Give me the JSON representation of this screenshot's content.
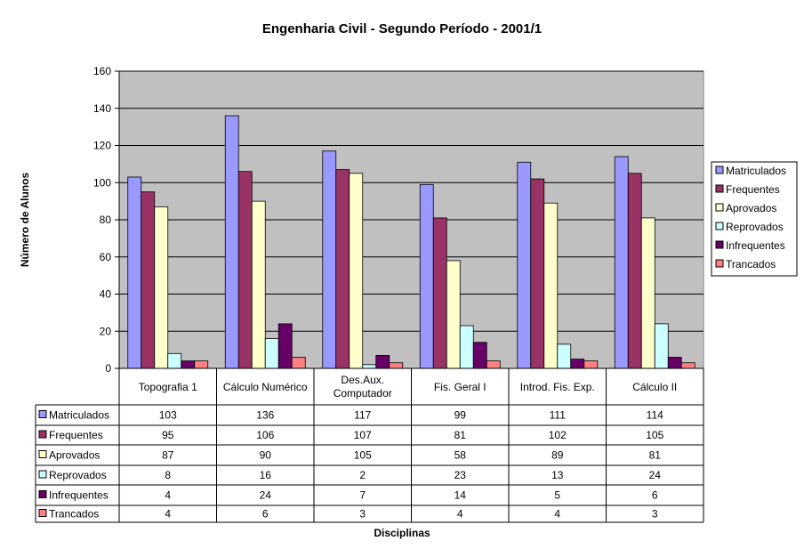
{
  "chart_data": {
    "type": "bar",
    "title": "Engenharia Civil - Segundo Período - 2001/1",
    "xlabel": "Disciplinas",
    "ylabel": "Número de Alunos",
    "ylim": [
      0,
      160
    ],
    "yticks": [
      0,
      20,
      40,
      60,
      80,
      100,
      120,
      140,
      160
    ],
    "grid": true,
    "legend_position": "right",
    "plot_background": "#C0C0C0",
    "categories": [
      [
        "Topografia 1"
      ],
      [
        "Cálculo Numérico"
      ],
      [
        "Des.Aux.",
        "Computador"
      ],
      [
        "Fis. Geral I"
      ],
      [
        "Introd. Fis. Exp."
      ],
      [
        "Cálculo II"
      ]
    ],
    "series": [
      {
        "name": "Matriculados",
        "color": "#9999FF",
        "values": [
          103,
          136,
          117,
          99,
          111,
          114
        ]
      },
      {
        "name": "Frequentes",
        "color": "#993366",
        "values": [
          95,
          106,
          107,
          81,
          102,
          105
        ]
      },
      {
        "name": "Aprovados",
        "color": "#FFFFCC",
        "values": [
          87,
          90,
          105,
          58,
          89,
          81
        ]
      },
      {
        "name": "Reprovados",
        "color": "#CCFFFF",
        "values": [
          8,
          16,
          2,
          23,
          13,
          24
        ]
      },
      {
        "name": "Infrequentes",
        "color": "#660066",
        "values": [
          4,
          24,
          7,
          14,
          5,
          6
        ]
      },
      {
        "name": "Trancados",
        "color": "#FF8080",
        "values": [
          4,
          6,
          3,
          4,
          4,
          3
        ]
      }
    ]
  }
}
